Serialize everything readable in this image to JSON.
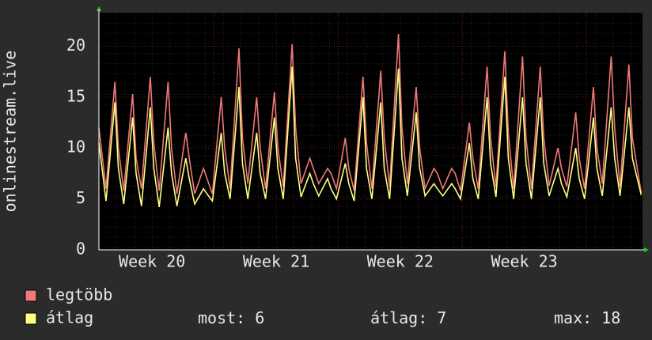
{
  "chart_data": {
    "type": "line",
    "y_label": "onlinestream.live",
    "xlim": [
      0,
      30.67
    ],
    "ylim": [
      0,
      23.3
    ],
    "yticks": [
      0,
      5,
      10,
      15,
      20
    ],
    "xticks": [
      {
        "value": 3,
        "label": "Week 20"
      },
      {
        "value": 10,
        "label": "Week 21"
      },
      {
        "value": 17,
        "label": "Week 22"
      },
      {
        "value": 24,
        "label": "Week 23"
      }
    ],
    "week_lines": [
      6.5,
      13.5,
      20.5,
      27.5
    ],
    "grid": true,
    "x": [
      0,
      0.4,
      0.9,
      1.1,
      1.4,
      1.9,
      2.1,
      2.4,
      2.9,
      3.1,
      3.4,
      3.9,
      4.1,
      4.4,
      4.9,
      5.1,
      5.4,
      5.9,
      6.1,
      6.4,
      6.9,
      7.1,
      7.4,
      7.9,
      8.1,
      8.4,
      8.9,
      9.1,
      9.4,
      9.9,
      10.1,
      10.4,
      10.9,
      11.1,
      11.4,
      11.9,
      12.1,
      12.4,
      12.9,
      13.1,
      13.4,
      13.9,
      14.1,
      14.4,
      14.9,
      15.1,
      15.4,
      15.9,
      16.1,
      16.4,
      16.9,
      17.1,
      17.4,
      17.9,
      18.1,
      18.4,
      18.9,
      19.1,
      19.4,
      19.9,
      20.1,
      20.4,
      20.9,
      21.1,
      21.4,
      21.9,
      22.1,
      22.4,
      22.9,
      23.1,
      23.4,
      23.9,
      24.1,
      24.4,
      24.9,
      25.1,
      25.4,
      25.9,
      26.1,
      26.4,
      26.9,
      27.1,
      27.4,
      27.9,
      28.1,
      28.4,
      28.9,
      29.1,
      29.4,
      29.9,
      30.1,
      30.6
    ],
    "series": [
      {
        "name": "legtöbb",
        "color": "#f07878",
        "values": [
          12,
          6,
          16.5,
          10,
          5.8,
          15.3,
          9,
          6,
          17,
          10.5,
          5.8,
          16.5,
          10,
          5.5,
          11.5,
          9,
          5.5,
          8,
          7,
          5.5,
          15,
          10,
          6,
          19.8,
          11,
          6.5,
          15,
          10,
          6,
          15.5,
          10,
          6.2,
          20.2,
          12,
          6.5,
          9,
          8,
          6.5,
          8,
          7.5,
          6,
          11,
          8,
          5.8,
          17,
          10.5,
          6,
          17.6,
          11,
          6.2,
          21.2,
          12,
          6.5,
          16,
          10,
          6,
          8,
          7.5,
          6,
          8,
          7.5,
          5.8,
          12.5,
          9,
          6,
          18,
          11,
          6.2,
          19.5,
          11.5,
          6,
          19,
          11,
          6,
          18,
          11,
          6.3,
          10,
          8,
          6.2,
          13.5,
          9,
          6,
          16,
          10,
          6.5,
          19,
          12,
          6.2,
          18.2,
          11,
          5.6
        ]
      },
      {
        "name": "átlag",
        "color": "#ffff80",
        "values": [
          10.5,
          4.8,
          14.5,
          8,
          4.5,
          13,
          7.5,
          4.3,
          14,
          8,
          4.2,
          12,
          7.5,
          4.3,
          9,
          7,
          4.5,
          6,
          5.5,
          4.8,
          11.5,
          7.5,
          5,
          16,
          8.5,
          5,
          11.5,
          7.5,
          5,
          13,
          8,
          5,
          18,
          9,
          5.2,
          7.5,
          6.5,
          5.3,
          7,
          6,
          5,
          8.5,
          6.5,
          4.8,
          15,
          8,
          5,
          14.5,
          8,
          5,
          17.8,
          9,
          5.3,
          13.5,
          8,
          5.3,
          6.5,
          6,
          5.3,
          6.5,
          6,
          5,
          10.5,
          7,
          5,
          15,
          8.5,
          5.2,
          17,
          9,
          5,
          15,
          8.5,
          5,
          15,
          8.5,
          5.3,
          8,
          6.5,
          5.2,
          10,
          7,
          5,
          13,
          8,
          5.3,
          14,
          9,
          5.3,
          14,
          9,
          5.4
        ]
      }
    ],
    "stats": [
      {
        "label": "most:",
        "value": 6
      },
      {
        "label": "átlag:",
        "value": 7
      },
      {
        "label": "max:",
        "value": 18
      }
    ]
  }
}
